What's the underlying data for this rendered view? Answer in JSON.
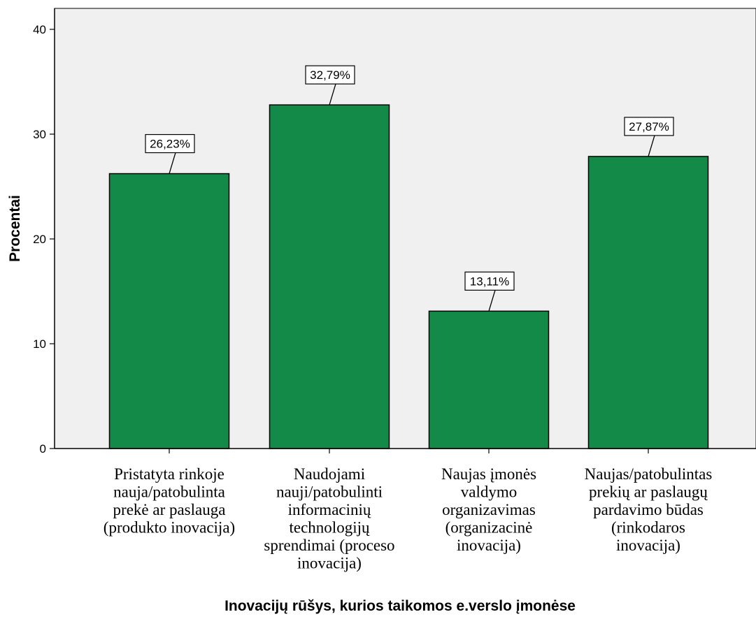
{
  "chart_data": {
    "type": "bar",
    "categories": [
      [
        "Pristatyta rinkoje",
        "nauja/patobulinta",
        "prekė ar paslauga",
        "(produkto inovacija)"
      ],
      [
        "Naudojami",
        "nauji/patobulinti",
        "informacinių",
        "technologijų",
        "sprendimai (proceso",
        "inovacija)"
      ],
      [
        "Naujas įmonės",
        "valdymo",
        "organizavimas",
        "(organizacinė",
        "inovacija)"
      ],
      [
        "Naujas/patobulintas",
        "prekių ar paslaugų",
        "pardavimo būdas",
        "(rinkodaros",
        "inovacija)"
      ]
    ],
    "values": [
      26.23,
      32.79,
      13.11,
      27.87
    ],
    "data_labels": [
      "26,23%",
      "32,79%",
      "13,11%",
      "27,87%"
    ],
    "xlabel": "Inovacijų rūšys, kurios taikomos e.verslo įmonėse",
    "ylabel": "Procentai",
    "ylim": [
      0,
      42
    ],
    "yticks": [
      0,
      10,
      20,
      30,
      40
    ],
    "ytick_labels": [
      "0",
      "10",
      "20",
      "30",
      "40"
    ],
    "grid": false,
    "legend": "none",
    "colors": {
      "bar": "#138a47",
      "plot_bg": "#f0f0f0",
      "edge": "#000000"
    }
  }
}
